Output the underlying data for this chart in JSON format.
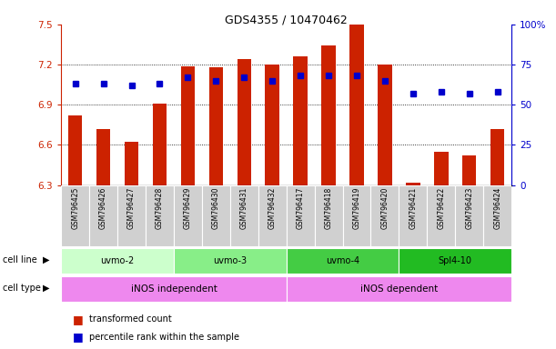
{
  "title": "GDS4355 / 10470462",
  "samples": [
    "GSM796425",
    "GSM796426",
    "GSM796427",
    "GSM796428",
    "GSM796429",
    "GSM796430",
    "GSM796431",
    "GSM796432",
    "GSM796417",
    "GSM796418",
    "GSM796419",
    "GSM796420",
    "GSM796421",
    "GSM796422",
    "GSM796423",
    "GSM796424"
  ],
  "bar_values": [
    6.82,
    6.72,
    6.62,
    6.91,
    7.19,
    7.18,
    7.24,
    7.2,
    7.26,
    7.34,
    7.5,
    7.2,
    6.32,
    6.55,
    6.52,
    6.72
  ],
  "percentile_values": [
    63,
    63,
    62,
    63,
    67,
    65,
    67,
    65,
    68,
    68,
    68,
    65,
    57,
    58,
    57,
    58
  ],
  "ylim_left": [
    6.3,
    7.5
  ],
  "ylim_right": [
    0,
    100
  ],
  "yticks_left": [
    6.3,
    6.6,
    6.9,
    7.2,
    7.5
  ],
  "yticks_right": [
    0,
    25,
    50,
    75,
    100
  ],
  "bar_color": "#cc2200",
  "dot_color": "#0000cc",
  "cell_line_colors": [
    "#ccffcc",
    "#88ee88",
    "#44cc44",
    "#22bb22"
  ],
  "cell_line_labels": [
    "uvmo-2",
    "uvmo-3",
    "uvmo-4",
    "Spl4-10"
  ],
  "cell_line_starts": [
    0,
    4,
    8,
    12
  ],
  "cell_line_ends": [
    4,
    8,
    12,
    16
  ],
  "cell_type_color": "#ee88ee",
  "cell_type_labels": [
    "iNOS independent",
    "iNOS dependent"
  ],
  "cell_type_starts": [
    0,
    8
  ],
  "cell_type_ends": [
    8,
    16
  ],
  "background_color": "#ffffff",
  "axis_left_color": "#cc2200",
  "axis_right_color": "#0000cc",
  "sample_bg_color": "#d0d0d0"
}
